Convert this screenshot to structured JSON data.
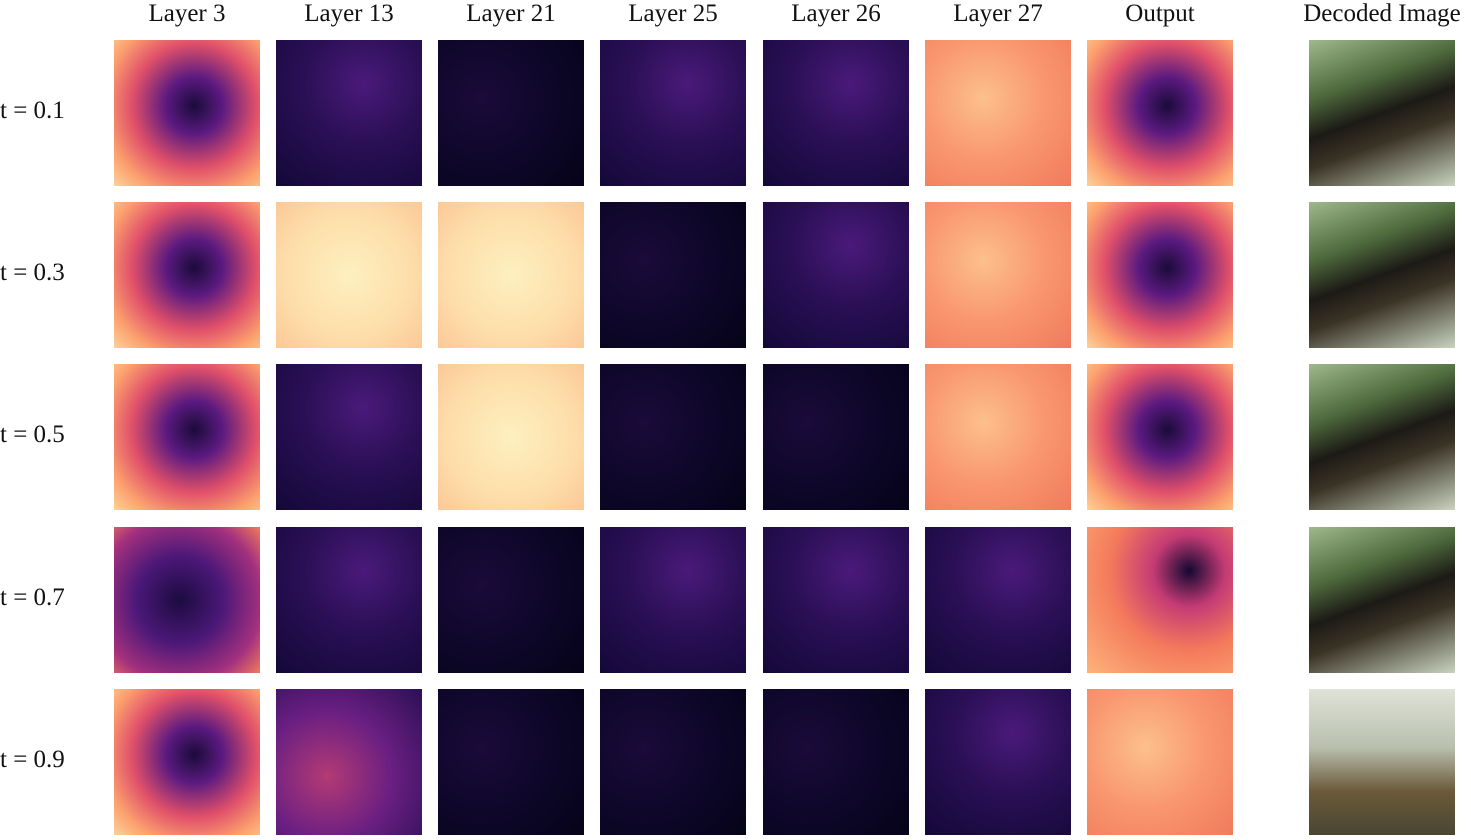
{
  "columns": [
    "Layer 3",
    "Layer 13",
    "Layer 21",
    "Layer 25",
    "Layer 26",
    "Layer 27",
    "Output",
    "Decoded Image"
  ],
  "rows": [
    "t = 0.1",
    "t = 0.3",
    "t = 0.5",
    "t = 0.7",
    "t = 0.9"
  ]
}
